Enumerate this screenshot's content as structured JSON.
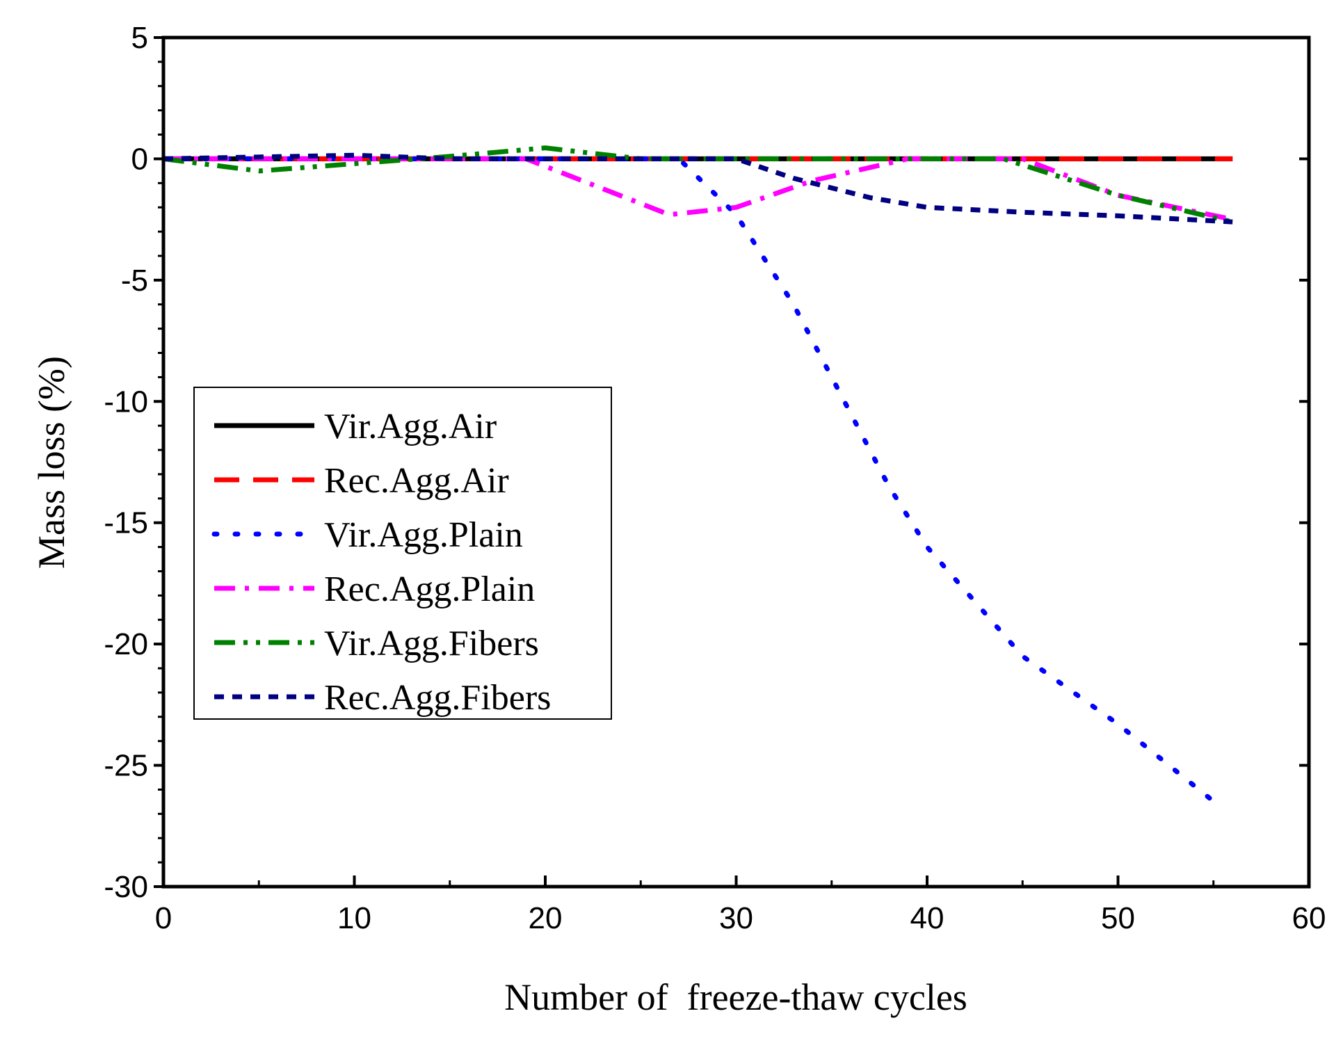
{
  "chart_data": {
    "type": "line",
    "title": "",
    "xlabel": "Number of  freeze-thaw cycles",
    "ylabel": "Mass loss (%)",
    "xlim": [
      0,
      60
    ],
    "ylim": [
      -30,
      5
    ],
    "xticks": [
      "0",
      "10",
      "20",
      "30",
      "40",
      "50",
      "60"
    ],
    "yticks": [
      "5",
      "0",
      "-5",
      "-10",
      "-15",
      "-20",
      "-25",
      "-30"
    ],
    "legend_position": "center-left",
    "series": [
      {
        "name": "Vir.Agg.Air",
        "color": "#000000",
        "dash": "solid",
        "points": [
          [
            0,
            0
          ],
          [
            56,
            0
          ]
        ]
      },
      {
        "name": "Rec.Agg.Air",
        "color": "#ff0000",
        "dash": "dash",
        "points": [
          [
            0,
            0
          ],
          [
            56,
            0
          ]
        ]
      },
      {
        "name": "Vir.Agg.Plain",
        "color": "#0000ff",
        "dash": "dot",
        "points": [
          [
            0,
            0
          ],
          [
            27,
            0
          ],
          [
            30,
            -2.3
          ],
          [
            33,
            -6
          ],
          [
            35,
            -9
          ],
          [
            38,
            -13.5
          ],
          [
            40,
            -16
          ],
          [
            45,
            -20.5
          ],
          [
            50,
            -23.3
          ],
          [
            55.5,
            -26.8
          ]
        ]
      },
      {
        "name": "Rec.Agg.Plain",
        "color": "#ff00ff",
        "dash": "dashdot",
        "points": [
          [
            0,
            0
          ],
          [
            19,
            0
          ],
          [
            26.5,
            -2.3
          ],
          [
            30,
            -2
          ],
          [
            34,
            -0.9
          ],
          [
            39,
            0
          ],
          [
            45,
            0
          ],
          [
            50,
            -1.5
          ],
          [
            56,
            -2.5
          ]
        ]
      },
      {
        "name": "Vir.Agg.Fibers",
        "color": "#008000",
        "dash": "dashdotdot",
        "points": [
          [
            0,
            0
          ],
          [
            5,
            -0.5
          ],
          [
            10,
            -0.2
          ],
          [
            15,
            0.1
          ],
          [
            20,
            0.45
          ],
          [
            25,
            0
          ],
          [
            44,
            0
          ],
          [
            50,
            -1.5
          ],
          [
            56,
            -2.6
          ]
        ]
      },
      {
        "name": "Rec.Agg.Fibers",
        "color": "#000080",
        "dash": "shortdash",
        "points": [
          [
            0,
            0
          ],
          [
            10,
            0.15
          ],
          [
            15,
            0
          ],
          [
            30,
            0
          ],
          [
            33,
            -0.8
          ],
          [
            37,
            -1.6
          ],
          [
            40,
            -2
          ],
          [
            45,
            -2.2
          ],
          [
            50,
            -2.35
          ],
          [
            56,
            -2.6
          ]
        ]
      }
    ]
  }
}
